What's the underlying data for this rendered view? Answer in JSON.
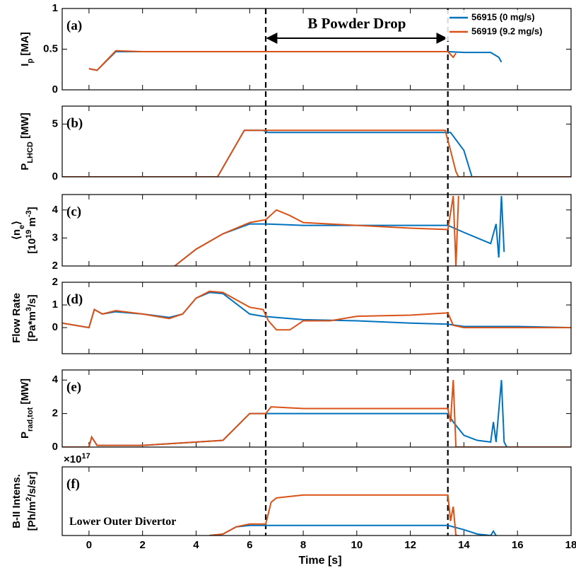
{
  "chart_data": [
    {
      "type": "line",
      "label": "(a)",
      "ylabel": [
        [
          "I",
          {
            "sub": "p"
          },
          " [MA]"
        ]
      ],
      "xlim": [
        -1,
        18
      ],
      "ylim": [
        0,
        1
      ],
      "yticks": [
        0,
        0.5,
        1
      ],
      "span": [
        6.6,
        13.4
      ],
      "span_label": "B Powder Drop",
      "series": [
        {
          "name": "56915 (0 mg/s)",
          "color": "#0072bd",
          "x": [
            0,
            0.3,
            1,
            2,
            4,
            6,
            8,
            10,
            12,
            13.4,
            14,
            15,
            15.3,
            15.4
          ],
          "values": [
            0.26,
            0.24,
            0.47,
            0.47,
            0.47,
            0.47,
            0.47,
            0.47,
            0.47,
            0.47,
            0.46,
            0.46,
            0.4,
            0.34
          ]
        },
        {
          "name": "56919 (9.2 mg/s)",
          "color": "#d95319",
          "x": [
            0,
            0.3,
            1,
            2,
            6,
            10,
            13.4,
            13.6,
            13.7
          ],
          "values": [
            0.26,
            0.24,
            0.48,
            0.47,
            0.47,
            0.47,
            0.47,
            0.4,
            0.45
          ]
        }
      ]
    },
    {
      "type": "line",
      "label": "(b)",
      "ylabel": [
        [
          "P",
          {
            "sub": "LHCD"
          },
          " [MW]"
        ]
      ],
      "xlim": [
        -1,
        18
      ],
      "ylim": [
        0,
        6.7
      ],
      "yticks": [
        0,
        5
      ],
      "series": [
        {
          "color": "#0072bd",
          "x": [
            -1,
            4.8,
            5.8,
            6.5,
            6.7,
            8,
            10,
            12,
            13.5,
            14,
            14.3,
            18
          ],
          "values": [
            0,
            0,
            4.4,
            4.4,
            4.2,
            4.2,
            4.2,
            4.2,
            4.2,
            2.5,
            0,
            0
          ]
        },
        {
          "color": "#d95319",
          "x": [
            -1,
            4.8,
            5.8,
            6.6,
            6.8,
            8,
            10,
            12,
            13.3,
            13.5,
            13.7,
            13.8,
            18
          ],
          "values": [
            0,
            0,
            4.4,
            4.4,
            4.4,
            4.4,
            4.4,
            4.4,
            4.4,
            2.5,
            0.5,
            0,
            0
          ]
        }
      ]
    },
    {
      "type": "line",
      "label": "(c)",
      "ylabel": [
        [
          "⟨n",
          {
            "sub": "e"
          },
          "⟩"
        ],
        [
          "[10",
          {
            "sup": "19"
          },
          " m",
          {
            "sup": "-3"
          },
          "]"
        ]
      ],
      "xlim": [
        -1,
        18
      ],
      "ylim": [
        2,
        4.55
      ],
      "yticks": [
        2,
        3,
        4
      ],
      "series": [
        {
          "color": "#0072bd",
          "x": [
            3.2,
            4,
            5,
            6,
            6.6,
            8,
            10,
            13.4,
            14,
            14.5,
            15,
            15.2,
            15.3,
            15.4,
            15.5
          ],
          "values": [
            2,
            2.6,
            3.15,
            3.5,
            3.5,
            3.45,
            3.45,
            3.45,
            3.2,
            3,
            2.8,
            3.5,
            2.3,
            4.5,
            2.5
          ]
        },
        {
          "color": "#d95319",
          "x": [
            3.2,
            4,
            5,
            6,
            6.6,
            7,
            7.5,
            8,
            9,
            10,
            12,
            13.4,
            13.6,
            13.7,
            13.8
          ],
          "values": [
            2,
            2.6,
            3.15,
            3.55,
            3.65,
            4.0,
            3.8,
            3.55,
            3.5,
            3.45,
            3.35,
            3.3,
            4.5,
            2,
            4.5
          ]
        }
      ]
    },
    {
      "type": "line",
      "label": "(d)",
      "ylabel": [
        [
          "Flow Rate"
        ],
        [
          "[Pa*m",
          {
            "sup": "3"
          },
          "/s]"
        ]
      ],
      "xlim": [
        -1,
        18
      ],
      "ylim": [
        -1.15,
        2
      ],
      "yticks": [
        0,
        1,
        2
      ],
      "series": [
        {
          "color": "#0072bd",
          "x": [
            -1,
            0,
            0.2,
            0.5,
            1,
            2,
            3,
            3.5,
            4,
            4.5,
            5,
            6,
            6.5,
            7,
            8,
            10,
            12,
            13.4,
            14,
            16,
            18
          ],
          "values": [
            0.2,
            0,
            0.8,
            0.6,
            0.7,
            0.6,
            0.45,
            0.6,
            1.3,
            1.55,
            1.5,
            0.6,
            0.5,
            0.45,
            0.35,
            0.3,
            0.2,
            0.15,
            0.05,
            0.05,
            0
          ]
        },
        {
          "color": "#d95319",
          "x": [
            -1,
            0,
            0.2,
            0.5,
            1,
            2,
            3,
            3.5,
            4,
            4.5,
            5,
            6,
            6.5,
            6.7,
            7,
            7.5,
            8,
            9,
            10,
            12,
            13.4,
            13.6,
            14,
            16,
            18
          ],
          "values": [
            0.2,
            0,
            0.8,
            0.6,
            0.75,
            0.6,
            0.4,
            0.6,
            1.3,
            1.6,
            1.55,
            0.9,
            0.8,
            0.3,
            -0.1,
            -0.1,
            0.3,
            0.3,
            0.5,
            0.55,
            0.65,
            0.1,
            0,
            0,
            0
          ]
        }
      ]
    },
    {
      "type": "line",
      "label": "(e)",
      "ylabel": [
        [
          "P",
          {
            "sub": "rad,tot"
          },
          " [MW]"
        ]
      ],
      "xlim": [
        -1,
        18
      ],
      "ylim": [
        0,
        4.6
      ],
      "yticks": [
        0,
        2,
        4
      ],
      "series": [
        {
          "color": "#0072bd",
          "x": [
            -1,
            0,
            0.1,
            0.3,
            2,
            4,
            5,
            5.5,
            6,
            8,
            10,
            13.4,
            13.6,
            14,
            14.5,
            15,
            15.1,
            15.2,
            15.4,
            15.5,
            15.6,
            18
          ],
          "values": [
            0,
            0,
            0.6,
            0.1,
            0.1,
            0.3,
            0.4,
            1.2,
            2,
            2,
            2,
            2,
            1.5,
            0.7,
            0.4,
            0.3,
            1.5,
            0.3,
            4,
            0.3,
            0,
            0
          ]
        },
        {
          "color": "#d95319",
          "x": [
            -1,
            0,
            0.1,
            0.3,
            2,
            4,
            5,
            5.5,
            6,
            6.6,
            6.8,
            8,
            10,
            13.4,
            13.5,
            13.6,
            13.7,
            13.8,
            18
          ],
          "values": [
            0,
            0,
            0.6,
            0.1,
            0.1,
            0.3,
            0.4,
            1.2,
            2,
            2,
            2.4,
            2.3,
            2.3,
            2.3,
            1.5,
            4,
            0,
            0,
            0
          ]
        }
      ]
    },
    {
      "type": "line",
      "label": "(f)",
      "ylabel": [
        [
          "B-II Intens."
        ],
        [
          "[Ph/m",
          {
            "sup": "2"
          },
          "/s/sr]"
        ]
      ],
      "offset_label": [
        "×10",
        {
          "sup": "17"
        }
      ],
      "annotation": "Lower Outer Divertor",
      "xlabel": "Time [s]",
      "xlim": [
        -1,
        18
      ],
      "xticks": [
        0,
        2,
        4,
        6,
        8,
        10,
        12,
        14,
        16,
        18
      ],
      "ylim": [
        0,
        4.75
      ],
      "series": [
        {
          "color": "#0072bd",
          "x": [
            4.5,
            5,
            5.5,
            6,
            6.6,
            8,
            10,
            12,
            13.4,
            14,
            14.5,
            15,
            15.1,
            15.2
          ],
          "values": [
            0,
            0.1,
            0.6,
            0.7,
            0.7,
            0.7,
            0.7,
            0.7,
            0.7,
            0.4,
            0.1,
            0,
            0.3,
            0
          ]
        },
        {
          "color": "#d95319",
          "x": [
            4.5,
            5,
            5.5,
            6,
            6.6,
            6.8,
            7,
            8,
            10,
            12,
            13.4,
            13.5,
            13.6,
            13.7,
            13.8
          ],
          "values": [
            0,
            0.1,
            0.6,
            0.8,
            0.8,
            2.3,
            2.6,
            2.8,
            2.8,
            2.8,
            2.8,
            1,
            2,
            0,
            0
          ]
        }
      ]
    }
  ]
}
